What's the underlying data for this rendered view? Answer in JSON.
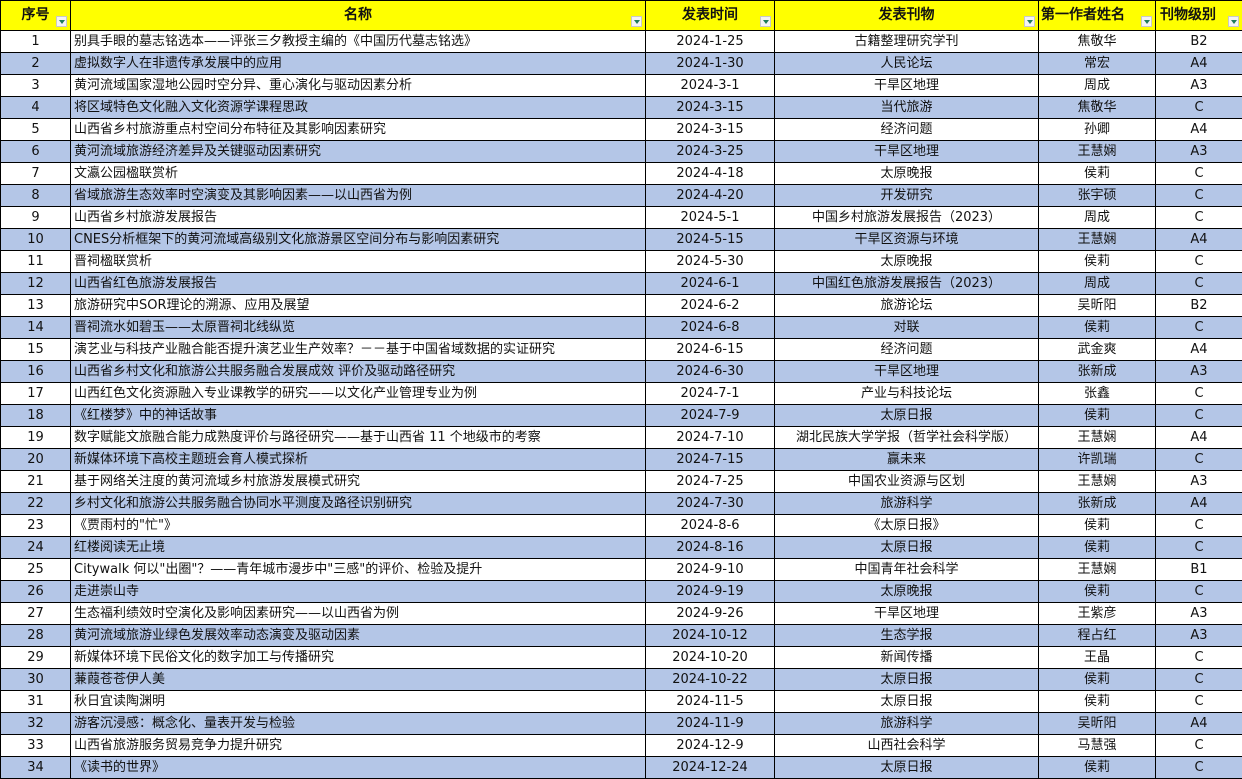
{
  "colors": {
    "header_bg": "#ffff00",
    "alt_row_bg": "#b4c6e7",
    "filter_arrow": "#1e7b5a"
  },
  "headers": [
    "序号",
    "名称",
    "发表时间",
    "发表刊物",
    "第一作者姓名",
    "刊物级别"
  ],
  "rows": [
    [
      "1",
      "别具手眼的墓志铭选本——评张三夕教授主编的《中国历代墓志铭选》",
      "2024-1-25",
      "古籍整理研究学刊",
      "焦敬华",
      "B2"
    ],
    [
      "2",
      "虚拟数字人在非遗传承发展中的应用",
      "2024-1-30",
      "人民论坛",
      "常宏",
      "A4"
    ],
    [
      "3",
      "黄河流域国家湿地公园时空分异、重心演化与驱动因素分析",
      "2024-3-1",
      "干旱区地理",
      "周成",
      "A3"
    ],
    [
      "4",
      "将区域特色文化融入文化资源学课程思政",
      "2024-3-15",
      "当代旅游",
      "焦敬华",
      "C"
    ],
    [
      "5",
      "山西省乡村旅游重点村空间分布特征及其影响因素研究",
      "2024-3-15",
      "经济问题",
      "孙卿",
      "A4"
    ],
    [
      "6",
      "黄河流域旅游经济差异及关键驱动因素研究",
      "2024-3-25",
      "干旱区地理",
      "王慧娴",
      "A3"
    ],
    [
      "7",
      "文瀛公园楹联赏析",
      "2024-4-18",
      "太原晚报",
      "侯莉",
      "C"
    ],
    [
      "8",
      "省域旅游生态效率时空演变及其影响因素——以山西省为例",
      "2024-4-20",
      "开发研究",
      "张宇硕",
      "C"
    ],
    [
      "9",
      "山西省乡村旅游发展报告",
      "2024-5-1",
      "中国乡村旅游发展报告（2023）",
      "周成",
      "C"
    ],
    [
      "10",
      "CNES分析框架下的黄河流域高级别文化旅游景区空间分布与影响因素研究",
      "2024-5-15",
      "干旱区资源与环境",
      "王慧娴",
      "A4"
    ],
    [
      "11",
      "晋祠楹联赏析",
      "2024-5-30",
      "太原晚报",
      "侯莉",
      "C"
    ],
    [
      "12",
      "山西省红色旅游发展报告",
      "2024-6-1",
      "中国红色旅游发展报告（2023）",
      "周成",
      "C"
    ],
    [
      "13",
      "旅游研究中SOR理论的溯源、应用及展望",
      "2024-6-2",
      "旅游论坛",
      "吴昕阳",
      "B2"
    ],
    [
      "14",
      "晋祠流水如碧玉——太原晋祠北线纵览",
      "2024-6-8",
      "对联",
      "侯莉",
      "C"
    ],
    [
      "15",
      "演艺业与科技产业融合能否提升演艺业生产效率？－－基于中国省域数据的实证研究",
      "2024-6-15",
      "经济问题",
      "武金爽",
      "A4"
    ],
    [
      "16",
      "山西省乡村文化和旅游公共服务融合发展成效 评价及驱动路径研究",
      "2024-6-30",
      "干旱区地理",
      "张新成",
      "A3"
    ],
    [
      "17",
      "山西红色文化资源融入专业课教学的研究——以文化产业管理专业为例",
      "2024-7-1",
      "产业与科技论坛",
      "张鑫",
      "C"
    ],
    [
      "18",
      "《红楼梦》中的神话故事",
      "2024-7-9",
      "太原日报",
      "侯莉",
      "C"
    ],
    [
      "19",
      "数字赋能文旅融合能力成熟度评价与路径研究——基于山西省  11 个地级市的考察",
      "2024-7-10",
      "湖北民族大学学报（哲学社会科学版）",
      "王慧娴",
      "A4"
    ],
    [
      "20",
      "新媒体环境下高校主题班会育人模式探析",
      "2024-7-15",
      "赢未来",
      "许凯瑞",
      "C"
    ],
    [
      "21",
      "基于网络关注度的黄河流域乡村旅游发展模式研究",
      "2024-7-25",
      "中国农业资源与区划",
      "王慧娴",
      "A3"
    ],
    [
      "22",
      "乡村文化和旅游公共服务融合协同水平测度及路径识别研究",
      "2024-7-30",
      "旅游科学",
      "张新成",
      "A4"
    ],
    [
      "23",
      "《贾雨村的\"忙\"》",
      "2024-8-6",
      "《太原日报》",
      "侯莉",
      "C"
    ],
    [
      "24",
      "红楼阅读无止境",
      "2024-8-16",
      "太原日报",
      "侯莉",
      "C"
    ],
    [
      "25",
      "Citywalk 何以\"出圈\"？——青年城市漫步中\"三感\"的评价、检验及提升",
      "2024-9-10",
      "中国青年社会科学",
      "王慧娴",
      "B1"
    ],
    [
      "26",
      "走进崇山寺",
      "2024-9-19",
      "太原晚报",
      "侯莉",
      "C"
    ],
    [
      "27",
      "生态福利绩效时空演化及影响因素研究——以山西省为例",
      "2024-9-26",
      "干旱区地理",
      "王紫彦",
      "A3"
    ],
    [
      "28",
      "黄河流域旅游业绿色发展效率动态演变及驱动因素",
      "2024-10-12",
      "生态学报",
      "程占红",
      "A3"
    ],
    [
      "29",
      "新媒体环境下民俗文化的数字加工与传播研究",
      "2024-10-20",
      "新闻传播",
      "王晶",
      "C"
    ],
    [
      "30",
      "蒹葭苍苍伊人美",
      "2024-10-22",
      "太原日报",
      "侯莉",
      "C"
    ],
    [
      "31",
      "秋日宜读陶渊明",
      "2024-11-5",
      "太原日报",
      "侯莉",
      "C"
    ],
    [
      "32",
      "游客沉浸感：概念化、量表开发与检验",
      "2024-11-9",
      "旅游科学",
      "吴昕阳",
      "A4"
    ],
    [
      "33",
      "山西省旅游服务贸易竞争力提升研究",
      "2024-12-9",
      "山西社会科学",
      "马慧强",
      "C"
    ],
    [
      "34",
      "《读书的世界》",
      "2024-12-24",
      "太原日报",
      "侯莉",
      "C"
    ]
  ]
}
